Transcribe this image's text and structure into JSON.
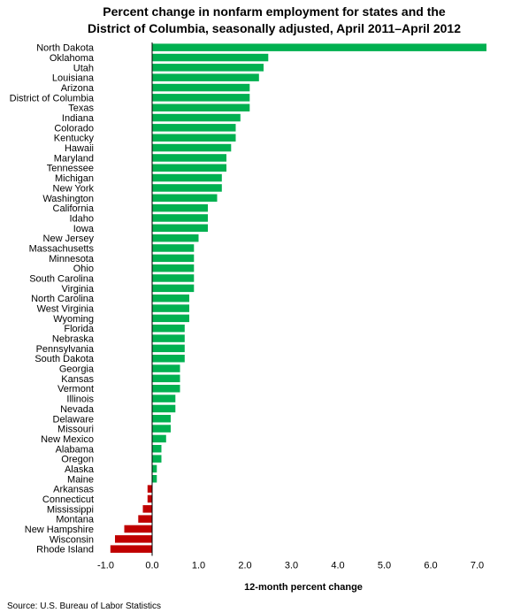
{
  "chart_data": {
    "type": "bar",
    "orientation": "horizontal",
    "title_line1": "Percent change in nonfarm employment for states and the",
    "title_line2": "District of Columbia, seasonally adjusted, April 2011–April 2012",
    "xlabel": "12-month percent change",
    "source": "Source: U.S. Bureau of Labor Statistics",
    "xlim": [
      -1.0,
      7.0
    ],
    "xticks": [
      "-1.0",
      "0.0",
      "1.0",
      "2.0",
      "3.0",
      "4.0",
      "5.0",
      "6.0",
      "7.0"
    ],
    "positive_color": "#00b050",
    "negative_color": "#c00000",
    "categories": [
      "North Dakota",
      "Oklahoma",
      "Utah",
      "Louisiana",
      "Arizona",
      "District of Columbia",
      "Texas",
      "Indiana",
      "Colorado",
      "Kentucky",
      "Hawaii",
      "Maryland",
      "Tennessee",
      "Michigan",
      "New York",
      "Washington",
      "California",
      "Idaho",
      "Iowa",
      "New Jersey",
      "Massachusetts",
      "Minnesota",
      "Ohio",
      "South Carolina",
      "Virginia",
      "North Carolina",
      "West Virginia",
      "Wyoming",
      "Florida",
      "Nebraska",
      "Pennsylvania",
      "South Dakota",
      "Georgia",
      "Kansas",
      "Vermont",
      "Illinois",
      "Nevada",
      "Delaware",
      "Missouri",
      "New Mexico",
      "Alabama",
      "Oregon",
      "Alaska",
      "Maine",
      "Arkansas",
      "Connecticut",
      "Mississippi",
      "Montana",
      "New Hampshire",
      "Wisconsin",
      "Rhode Island"
    ],
    "values": [
      7.2,
      2.5,
      2.4,
      2.3,
      2.1,
      2.1,
      2.1,
      1.9,
      1.8,
      1.8,
      1.7,
      1.6,
      1.6,
      1.5,
      1.5,
      1.4,
      1.2,
      1.2,
      1.2,
      1.0,
      0.9,
      0.9,
      0.9,
      0.9,
      0.9,
      0.8,
      0.8,
      0.8,
      0.7,
      0.7,
      0.7,
      0.7,
      0.6,
      0.6,
      0.6,
      0.5,
      0.5,
      0.4,
      0.4,
      0.3,
      0.2,
      0.2,
      0.1,
      0.1,
      -0.1,
      -0.1,
      -0.2,
      -0.3,
      -0.6,
      -0.8,
      -0.9
    ]
  }
}
